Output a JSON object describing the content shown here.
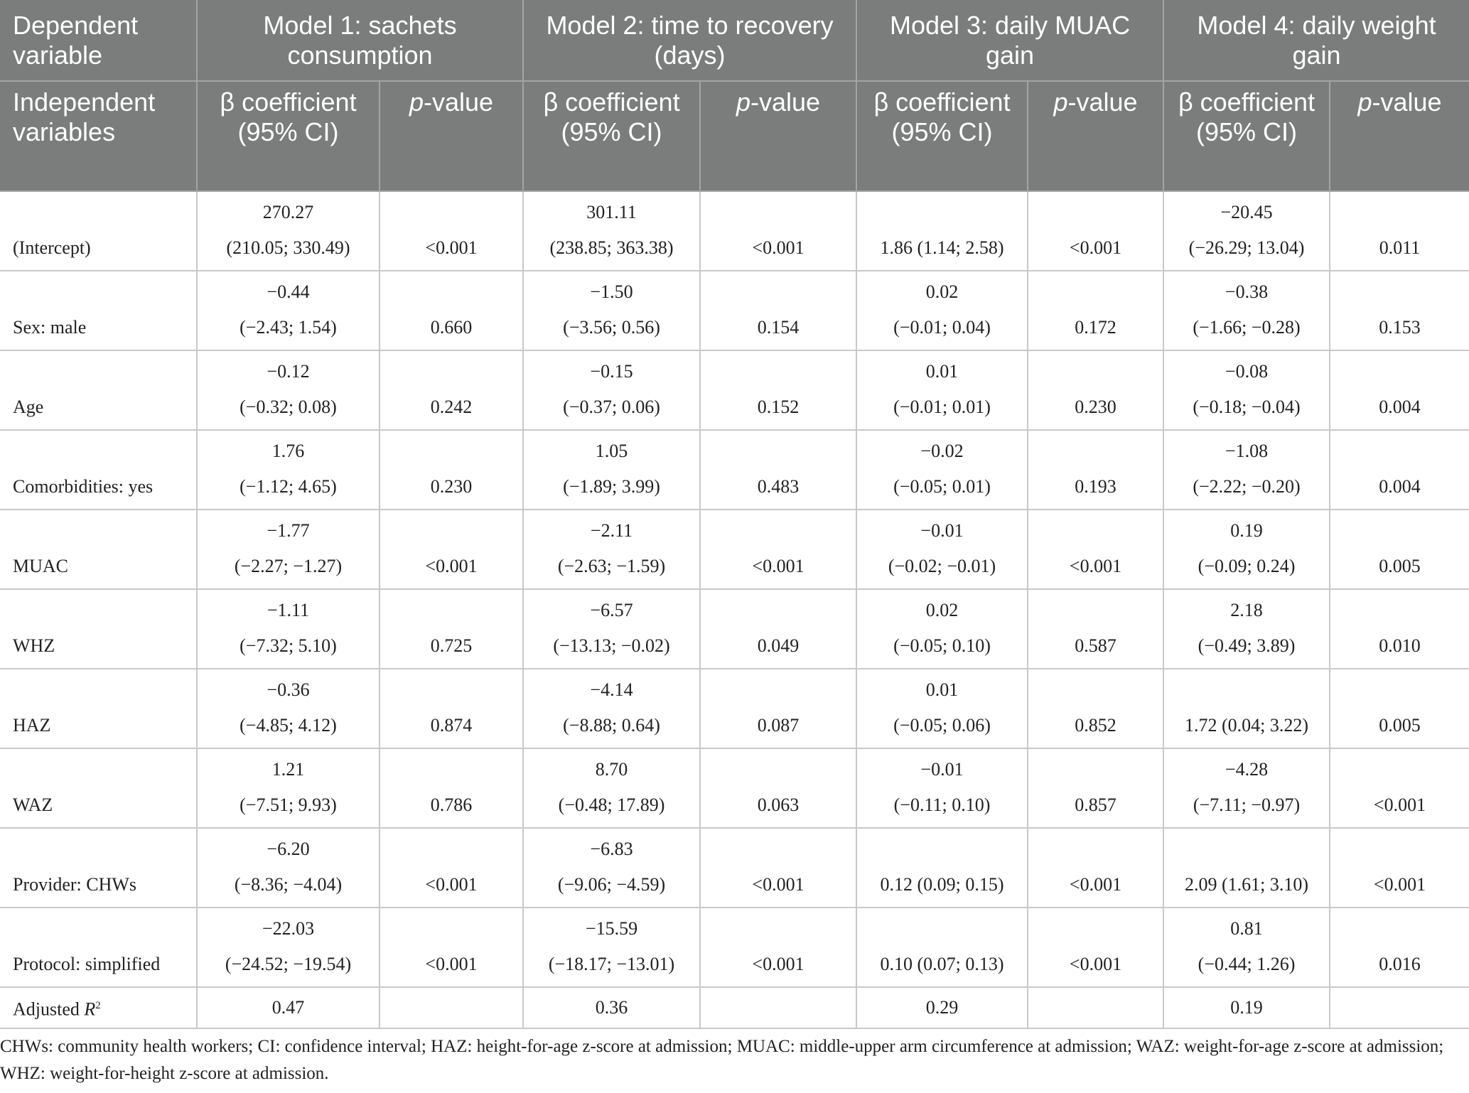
{
  "table": {
    "header": {
      "dependent_label": "Dependent variable",
      "models": [
        "Model 1: sachets consumption",
        "Model 2: time to recovery (days)",
        "Model 3: daily MUAC gain",
        "Model 4: daily weight gain"
      ],
      "independent_label": "Independent variables",
      "coef_label": "β coefficient (95% CI)",
      "p_label": {
        "italic": "p",
        "rest": "-value"
      }
    },
    "rows": [
      {
        "label": "(Intercept)",
        "cells": [
          {
            "coef": [
              "270.27",
              "(210.05; 330.49)"
            ],
            "p": "<0.001"
          },
          {
            "coef": [
              "301.11",
              "(238.85; 363.38)"
            ],
            "p": "<0.001"
          },
          {
            "coef": [
              "1.86 (1.14; 2.58)"
            ],
            "p": "<0.001"
          },
          {
            "coef": [
              "−20.45",
              "(−26.29; 13.04)"
            ],
            "p": "0.011"
          }
        ]
      },
      {
        "label": "Sex: male",
        "cells": [
          {
            "coef": [
              "−0.44",
              "(−2.43; 1.54)"
            ],
            "p": "0.660"
          },
          {
            "coef": [
              "−1.50",
              "(−3.56; 0.56)"
            ],
            "p": "0.154"
          },
          {
            "coef": [
              "0.02",
              "(−0.01; 0.04)"
            ],
            "p": "0.172"
          },
          {
            "coef": [
              "−0.38",
              "(−1.66; −0.28)"
            ],
            "p": "0.153"
          }
        ]
      },
      {
        "label": "Age",
        "cells": [
          {
            "coef": [
              "−0.12",
              "(−0.32; 0.08)"
            ],
            "p": "0.242"
          },
          {
            "coef": [
              "−0.15",
              "(−0.37; 0.06)"
            ],
            "p": "0.152"
          },
          {
            "coef": [
              "0.01",
              "(−0.01; 0.01)"
            ],
            "p": "0.230"
          },
          {
            "coef": [
              "−0.08",
              "(−0.18; −0.04)"
            ],
            "p": "0.004"
          }
        ]
      },
      {
        "label": "Comorbidities: yes",
        "cells": [
          {
            "coef": [
              "1.76",
              "(−1.12; 4.65)"
            ],
            "p": "0.230"
          },
          {
            "coef": [
              "1.05",
              "(−1.89; 3.99)"
            ],
            "p": "0.483"
          },
          {
            "coef": [
              "−0.02",
              "(−0.05; 0.01)"
            ],
            "p": "0.193"
          },
          {
            "coef": [
              "−1.08",
              "(−2.22; −0.20)"
            ],
            "p": "0.004"
          }
        ]
      },
      {
        "label": "MUAC",
        "cells": [
          {
            "coef": [
              "−1.77",
              "(−2.27; −1.27)"
            ],
            "p": "<0.001"
          },
          {
            "coef": [
              "−2.11",
              "(−2.63; −1.59)"
            ],
            "p": "<0.001"
          },
          {
            "coef": [
              "−0.01",
              "(−0.02; −0.01)"
            ],
            "p": "<0.001"
          },
          {
            "coef": [
              "0.19",
              "(−0.09; 0.24)"
            ],
            "p": "0.005"
          }
        ]
      },
      {
        "label": "WHZ",
        "cells": [
          {
            "coef": [
              "−1.11",
              "(−7.32; 5.10)"
            ],
            "p": "0.725"
          },
          {
            "coef": [
              "−6.57",
              "(−13.13; −0.02)"
            ],
            "p": "0.049"
          },
          {
            "coef": [
              "0.02",
              "(−0.05; 0.10)"
            ],
            "p": "0.587"
          },
          {
            "coef": [
              "2.18",
              "(−0.49; 3.89)"
            ],
            "p": "0.010"
          }
        ]
      },
      {
        "label": "HAZ",
        "cells": [
          {
            "coef": [
              "−0.36",
              "(−4.85; 4.12)"
            ],
            "p": "0.874"
          },
          {
            "coef": [
              "−4.14",
              "(−8.88; 0.64)"
            ],
            "p": "0.087"
          },
          {
            "coef": [
              "0.01",
              "(−0.05; 0.06)"
            ],
            "p": "0.852"
          },
          {
            "coef": [
              "1.72 (0.04; 3.22)"
            ],
            "p": "0.005"
          }
        ]
      },
      {
        "label": "WAZ",
        "cells": [
          {
            "coef": [
              "1.21",
              "(−7.51; 9.93)"
            ],
            "p": "0.786"
          },
          {
            "coef": [
              "8.70",
              "(−0.48; 17.89)"
            ],
            "p": "0.063"
          },
          {
            "coef": [
              "−0.01",
              "(−0.11; 0.10)"
            ],
            "p": "0.857"
          },
          {
            "coef": [
              "−4.28",
              "(−7.11; −0.97)"
            ],
            "p": "<0.001"
          }
        ]
      },
      {
        "label": "Provider: CHWs",
        "cells": [
          {
            "coef": [
              "−6.20",
              "(−8.36; −4.04)"
            ],
            "p": "<0.001"
          },
          {
            "coef": [
              "−6.83",
              "(−9.06; −4.59)"
            ],
            "p": "<0.001"
          },
          {
            "coef": [
              "0.12 (0.09; 0.15)"
            ],
            "p": "<0.001"
          },
          {
            "coef": [
              "2.09 (1.61; 3.10)"
            ],
            "p": "<0.001"
          }
        ]
      },
      {
        "label": "Protocol: simplified",
        "cells": [
          {
            "coef": [
              "−22.03",
              "(−24.52; −19.54)"
            ],
            "p": "<0.001"
          },
          {
            "coef": [
              "−15.59",
              "(−18.17; −13.01)"
            ],
            "p": "<0.001"
          },
          {
            "coef": [
              "0.10 (0.07; 0.13)"
            ],
            "p": "<0.001"
          },
          {
            "coef": [
              "0.81",
              "(−0.44; 1.26)"
            ],
            "p": "0.016"
          }
        ]
      }
    ],
    "r2": {
      "label": {
        "text": "Adjusted ",
        "var": "R",
        "sup": "2"
      },
      "values": [
        "0.47",
        "0.36",
        "0.29",
        "0.19"
      ]
    }
  },
  "footnote": "CHWs: community health workers; CI: confidence interval; HAZ: height-for-age z-score at admission; MUAC: middle-upper arm circumference at admission; WAZ: weight-for-age z-score at admission; WHZ: weight-for-height z-score at admission."
}
